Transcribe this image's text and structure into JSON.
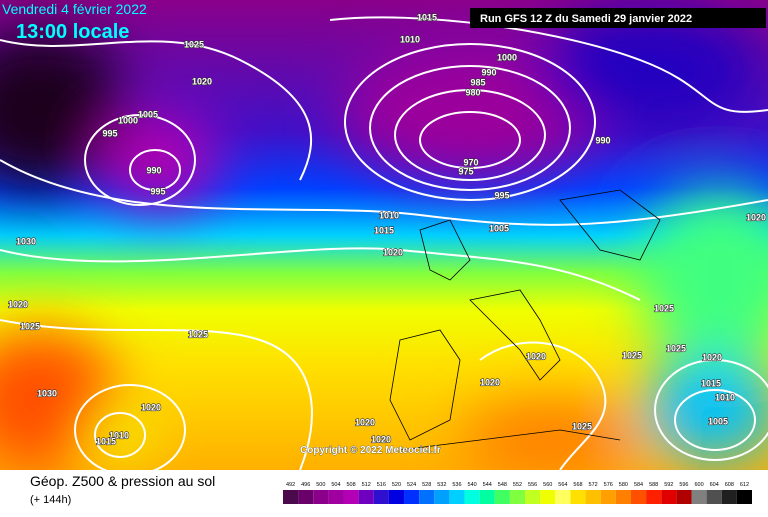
{
  "header": {
    "date": "Vendredi 4 février 2022",
    "time": "13:00 locale",
    "run": "Run GFS 12 Z du Samedi 29 janvier 2022",
    "copyright": "Copyright © 2022 Meteociel.fr"
  },
  "footer": {
    "title": "Géop. Z500 & pression au sol",
    "lead": "(+ 144h)"
  },
  "map": {
    "isobar_labels": [
      1015,
      1010,
      1000,
      990,
      985,
      980,
      970,
      975,
      990,
      995,
      1005,
      1010,
      1015,
      1020,
      1025,
      1020,
      1005,
      1000,
      995,
      990,
      995,
      1030,
      1020,
      1025,
      1025,
      1030,
      1020,
      1010,
      1015,
      1020,
      1020,
      1020,
      1020,
      1025,
      1025,
      1025,
      1025,
      1020,
      1015,
      1010,
      1005,
      1020
    ]
  },
  "colorbar": {
    "levels": [
      492,
      496,
      500,
      504,
      508,
      512,
      516,
      520,
      524,
      528,
      532,
      536,
      540,
      544,
      548,
      552,
      556,
      560,
      564,
      568,
      572,
      576,
      580,
      584,
      588,
      592,
      596,
      600,
      604,
      608,
      612
    ],
    "colors": [
      "#4b0a4b",
      "#6a006a",
      "#8a008a",
      "#a000a0",
      "#b400b4",
      "#7000c0",
      "#3010d0",
      "#0000e0",
      "#0030ff",
      "#0070ff",
      "#00a0ff",
      "#00d0ff",
      "#00ffe0",
      "#00ffa0",
      "#40ff60",
      "#80ff40",
      "#c0ff20",
      "#f0ff00",
      "#ffff60",
      "#ffe000",
      "#ffc000",
      "#ffa000",
      "#ff8000",
      "#ff5000",
      "#ff2000",
      "#e00000",
      "#b00000",
      "#808080",
      "#505050",
      "#202020",
      "#000000"
    ]
  }
}
